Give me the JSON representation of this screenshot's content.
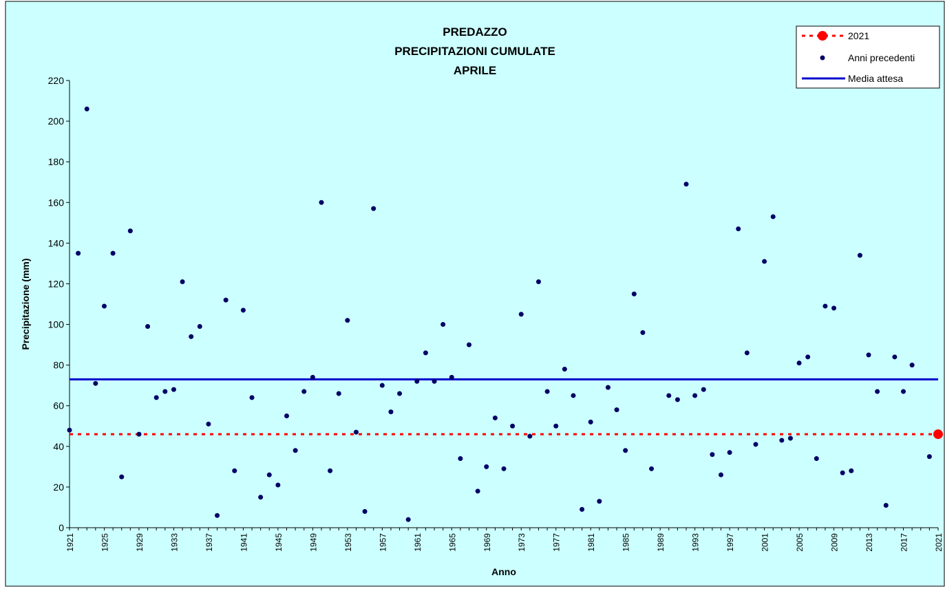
{
  "chart_data": {
    "type": "scatter",
    "title": [
      "PREDAZZO",
      "PRECIPITAZIONI CUMULATE",
      "APRILE"
    ],
    "xlabel": "Anno",
    "ylabel": "Precipitazione (mm)",
    "xlim": [
      1921,
      2021
    ],
    "ylim": [
      0,
      220
    ],
    "x_ticks": [
      1921,
      1925,
      1929,
      1933,
      1937,
      1941,
      1945,
      1949,
      1953,
      1957,
      1961,
      1965,
      1969,
      1973,
      1977,
      1981,
      1985,
      1989,
      1993,
      1997,
      2001,
      2005,
      2009,
      2013,
      2017,
      2021
    ],
    "y_ticks": [
      0,
      20,
      40,
      60,
      80,
      100,
      120,
      140,
      160,
      180,
      200,
      220
    ],
    "grid": false,
    "legend_position": "top-right",
    "colors": {
      "plot_background": "#ccffff",
      "current_year": "#ff0000",
      "previous_years": "#000066",
      "mean": "#0000cc"
    },
    "series": [
      {
        "name": "2021",
        "style": "red-dot-with-dotted-reference-line",
        "x": [
          2021
        ],
        "y": [
          46
        ]
      },
      {
        "name": "Anni precedenti",
        "style": "points",
        "x": [
          1921,
          1922,
          1923,
          1924,
          1925,
          1926,
          1927,
          1928,
          1929,
          1930,
          1931,
          1932,
          1933,
          1934,
          1935,
          1936,
          1937,
          1938,
          1939,
          1940,
          1941,
          1942,
          1943,
          1944,
          1945,
          1946,
          1947,
          1948,
          1949,
          1950,
          1951,
          1952,
          1953,
          1954,
          1955,
          1956,
          1957,
          1958,
          1959,
          1960,
          1961,
          1962,
          1963,
          1964,
          1965,
          1966,
          1967,
          1968,
          1969,
          1970,
          1971,
          1972,
          1973,
          1974,
          1975,
          1976,
          1977,
          1978,
          1979,
          1980,
          1981,
          1982,
          1983,
          1984,
          1985,
          1986,
          1987,
          1988,
          1990,
          1991,
          1992,
          1993,
          1994,
          1995,
          1996,
          1997,
          1998,
          1999,
          2000,
          2001,
          2002,
          2003,
          2004,
          2005,
          2006,
          2007,
          2008,
          2009,
          2010,
          2011,
          2012,
          2013,
          2014,
          2015,
          2016,
          2017,
          2018,
          2020
        ],
        "y": [
          48,
          135,
          206,
          71,
          109,
          135,
          25,
          146,
          46,
          99,
          64,
          67,
          68,
          121,
          94,
          99,
          51,
          6,
          112,
          28,
          107,
          64,
          15,
          26,
          21,
          55,
          38,
          67,
          74,
          160,
          28,
          66,
          102,
          47,
          8,
          157,
          70,
          57,
          66,
          4,
          72,
          86,
          72,
          100,
          74,
          34,
          90,
          18,
          30,
          54,
          29,
          50,
          105,
          45,
          121,
          67,
          50,
          78,
          65,
          9,
          52,
          13,
          69,
          58,
          38,
          115,
          96,
          29,
          65,
          63,
          169,
          65,
          68,
          36,
          26,
          37,
          147,
          86,
          41,
          131,
          153,
          43,
          44,
          81,
          84,
          34,
          109,
          108,
          27,
          28,
          134,
          85,
          67,
          11,
          84,
          67,
          80,
          35
        ]
      },
      {
        "name": "Media attesa",
        "style": "line",
        "y": 73
      }
    ],
    "legend": [
      "2021",
      "Anni precedenti",
      "Media attesa"
    ]
  }
}
